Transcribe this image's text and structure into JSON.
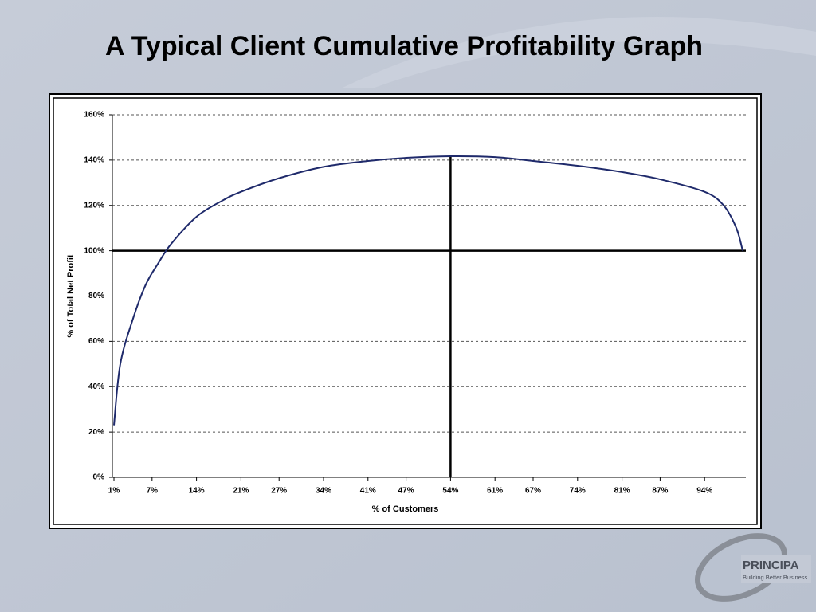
{
  "chart_data": {
    "type": "line",
    "title": "A Typical Client Cumulative Profitability Graph",
    "x_label": "% of Customers",
    "y_label": "% of Total Net Profit",
    "x": [
      1,
      2,
      4,
      6,
      8,
      10,
      14,
      18,
      21,
      27,
      34,
      41,
      47,
      54,
      61,
      67,
      74,
      81,
      87,
      94,
      97,
      99,
      100
    ],
    "values": [
      23,
      50,
      70,
      85,
      94.6,
      103,
      115,
      122,
      126,
      132,
      137,
      139.6,
      141,
      141.7,
      141.3,
      139.6,
      137.5,
      134.7,
      131.5,
      126,
      120,
      110,
      100
    ],
    "color": "#1f2a6b",
    "xlim": [
      0.75,
      100.5
    ],
    "xticks": [
      {
        "value": 1,
        "label": "1%"
      },
      {
        "value": 7,
        "label": "7%"
      },
      {
        "value": 14,
        "label": "14%"
      },
      {
        "value": 21,
        "label": "21%"
      },
      {
        "value": 27,
        "label": "27%"
      },
      {
        "value": 34,
        "label": "34%"
      },
      {
        "value": 41,
        "label": "41%"
      },
      {
        "value": 47,
        "label": "47%"
      },
      {
        "value": 54,
        "label": "54%"
      },
      {
        "value": 61,
        "label": "61%"
      },
      {
        "value": 67,
        "label": "67%"
      },
      {
        "value": 74,
        "label": "74%"
      },
      {
        "value": 81,
        "label": "81%"
      },
      {
        "value": 87,
        "label": "87%"
      },
      {
        "value": 94,
        "label": "94%"
      }
    ],
    "ylim": [
      0,
      160
    ],
    "yticks": [
      {
        "value": 0,
        "label": "0%"
      },
      {
        "value": 20,
        "label": "20%"
      },
      {
        "value": 40,
        "label": "40%"
      },
      {
        "value": 60,
        "label": "60%"
      },
      {
        "value": 80,
        "label": "80%"
      },
      {
        "value": 100,
        "label": "100%"
      },
      {
        "value": 120,
        "label": "120%"
      },
      {
        "value": 140,
        "label": "140%"
      },
      {
        "value": 160,
        "label": "160%"
      }
    ],
    "grid": true,
    "hline": 100,
    "vline": 54
  },
  "logo": {
    "name": "PRINCIPA",
    "tagline": "Building Better Business."
  }
}
